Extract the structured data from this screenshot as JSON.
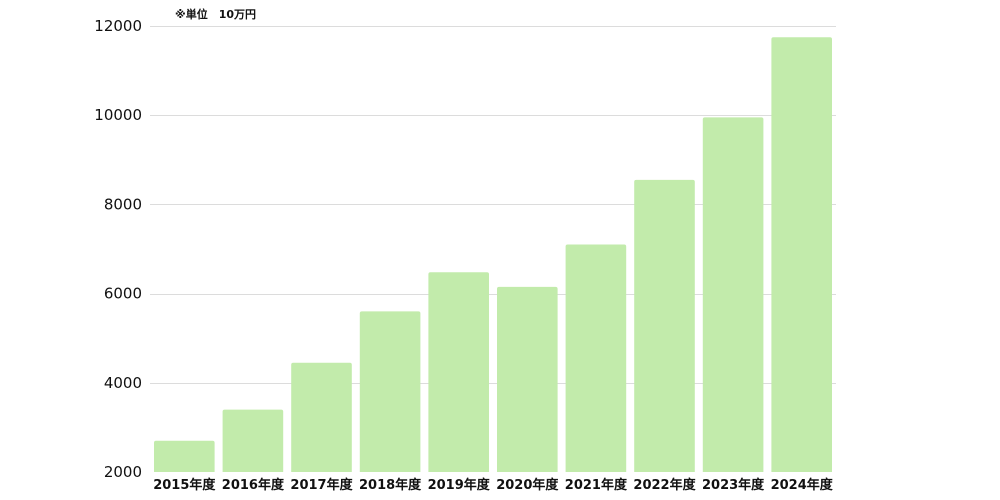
{
  "chart_data": {
    "type": "bar",
    "unit_note": "※単位　10万円",
    "categories": [
      "2015年度",
      "2016年度",
      "2017年度",
      "2018年度",
      "2019年度",
      "2020年度",
      "2021年度",
      "2022年度",
      "2023年度",
      "2024年度"
    ],
    "values": [
      2700,
      3400,
      4450,
      5600,
      6480,
      6150,
      7100,
      8550,
      9950,
      11750
    ],
    "ylim": [
      2000,
      12000
    ],
    "yticks": [
      2000,
      4000,
      6000,
      8000,
      10000,
      12000
    ],
    "bar_color": "#c2ebab",
    "grid": true
  }
}
